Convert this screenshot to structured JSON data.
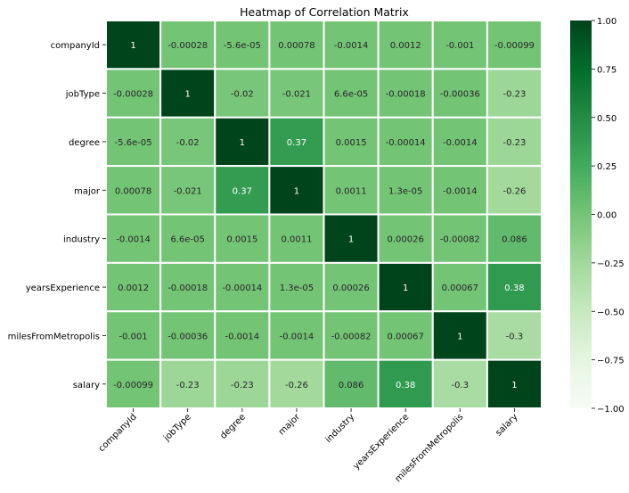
{
  "chart_data": {
    "type": "heatmap",
    "title": "Heatmap of Correlation Matrix",
    "xlabel": "",
    "ylabel": "",
    "x_categories": [
      "companyId",
      "jobType",
      "degree",
      "major",
      "industry",
      "yearsExperience",
      "milesFromMetropolis",
      "salary"
    ],
    "y_categories": [
      "companyId",
      "jobType",
      "degree",
      "major",
      "industry",
      "yearsExperience",
      "milesFromMetropolis",
      "salary"
    ],
    "values": [
      [
        1,
        -0.00028,
        -5.6e-05,
        0.00078,
        -0.0014,
        0.0012,
        -0.001,
        -0.00099
      ],
      [
        -0.00028,
        1,
        -0.02,
        -0.021,
        6.6e-05,
        -0.00018,
        -0.00036,
        -0.23
      ],
      [
        -5.6e-05,
        -0.02,
        1,
        0.37,
        0.0015,
        -0.00014,
        -0.0014,
        -0.23
      ],
      [
        0.00078,
        -0.021,
        0.37,
        1,
        0.0011,
        1.3e-05,
        -0.0014,
        -0.26
      ],
      [
        -0.0014,
        6.6e-05,
        0.0015,
        0.0011,
        1,
        0.00026,
        -0.00082,
        0.086
      ],
      [
        0.0012,
        -0.00018,
        -0.00014,
        1.3e-05,
        0.00026,
        1,
        0.00067,
        0.38
      ],
      [
        -0.001,
        -0.00036,
        -0.0014,
        -0.0014,
        -0.00082,
        0.00067,
        1,
        -0.3
      ],
      [
        -0.00099,
        -0.23,
        -0.23,
        -0.26,
        0.086,
        0.38,
        -0.3,
        1
      ]
    ],
    "annotations": [
      [
        "1",
        "-0.00028",
        "-5.6e-05",
        "0.00078",
        "-0.0014",
        "0.0012",
        "-0.001",
        "-0.00099"
      ],
      [
        "-0.00028",
        "1",
        "-0.02",
        "-0.021",
        "6.6e-05",
        "-0.00018",
        "-0.00036",
        "-0.23"
      ],
      [
        "-5.6e-05",
        "-0.02",
        "1",
        "0.37",
        "0.0015",
        "-0.00014",
        "-0.0014",
        "-0.23"
      ],
      [
        "0.00078",
        "-0.021",
        "0.37",
        "1",
        "0.0011",
        "1.3e-05",
        "-0.0014",
        "-0.26"
      ],
      [
        "-0.0014",
        "6.6e-05",
        "0.0015",
        "0.0011",
        "1",
        "0.00026",
        "-0.00082",
        "0.086"
      ],
      [
        "0.0012",
        "-0.00018",
        "-0.00014",
        "1.3e-05",
        "0.00026",
        "1",
        "0.00067",
        "0.38"
      ],
      [
        "-0.001",
        "-0.00036",
        "-0.0014",
        "-0.0014",
        "-0.00082",
        "0.00067",
        "1",
        "-0.3"
      ],
      [
        "-0.00099",
        "-0.23",
        "-0.23",
        "-0.26",
        "0.086",
        "0.38",
        "-0.3",
        "1"
      ]
    ],
    "colorbar": {
      "vmin": -1.0,
      "vmax": 1.0,
      "ticks": [
        1.0,
        0.75,
        0.5,
        0.25,
        0.0,
        -0.25,
        -0.5,
        -0.75,
        -1.0
      ],
      "tick_labels": [
        "1.00",
        "0.75",
        "0.50",
        "0.25",
        "0.00",
        "−0.25",
        "−0.50",
        "−0.75",
        "−1.00"
      ]
    },
    "colormap": "Greens",
    "colormap_stops": [
      "#f7fcf5",
      "#e5f5e0",
      "#c7e9c0",
      "#a1d99b",
      "#74c476",
      "#41ab5d",
      "#238b45",
      "#006d2c",
      "#00441b"
    ],
    "grid_line_color": "#ffffff",
    "legend": "none"
  }
}
